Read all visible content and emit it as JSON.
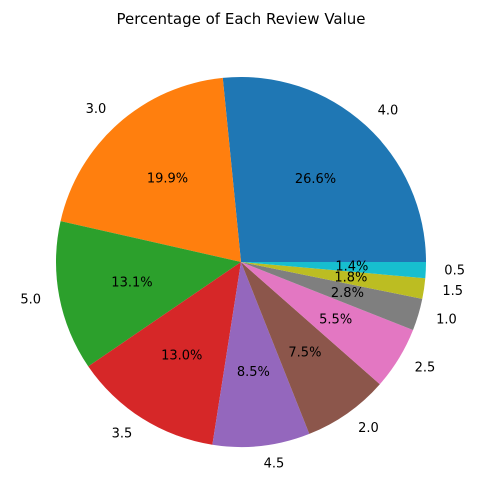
{
  "chart_data": {
    "type": "pie",
    "title": "Percentage of Each Review Value",
    "start_angle_deg": 0,
    "direction": "counterclockwise",
    "slices": [
      {
        "label": "4.0",
        "percent": 26.6,
        "pct_label": "26.6%",
        "color": "#1f77b4"
      },
      {
        "label": "3.0",
        "percent": 19.9,
        "pct_label": "19.9%",
        "color": "#ff7f0e"
      },
      {
        "label": "5.0",
        "percent": 13.1,
        "pct_label": "13.1%",
        "color": "#2ca02c"
      },
      {
        "label": "3.5",
        "percent": 13.0,
        "pct_label": "13.0%",
        "color": "#d62728"
      },
      {
        "label": "4.5",
        "percent": 8.5,
        "pct_label": "8.5%",
        "color": "#9467bd"
      },
      {
        "label": "2.0",
        "percent": 7.5,
        "pct_label": "7.5%",
        "color": "#8c564b"
      },
      {
        "label": "2.5",
        "percent": 5.5,
        "pct_label": "5.5%",
        "color": "#e377c2"
      },
      {
        "label": "1.0",
        "percent": 2.8,
        "pct_label": "2.8%",
        "color": "#7f7f7f"
      },
      {
        "label": "1.5",
        "percent": 1.8,
        "pct_label": "1.8%",
        "color": "#bcbd22"
      },
      {
        "label": "0.5",
        "percent": 1.4,
        "pct_label": "1.4%",
        "color": "#17becf"
      }
    ]
  }
}
